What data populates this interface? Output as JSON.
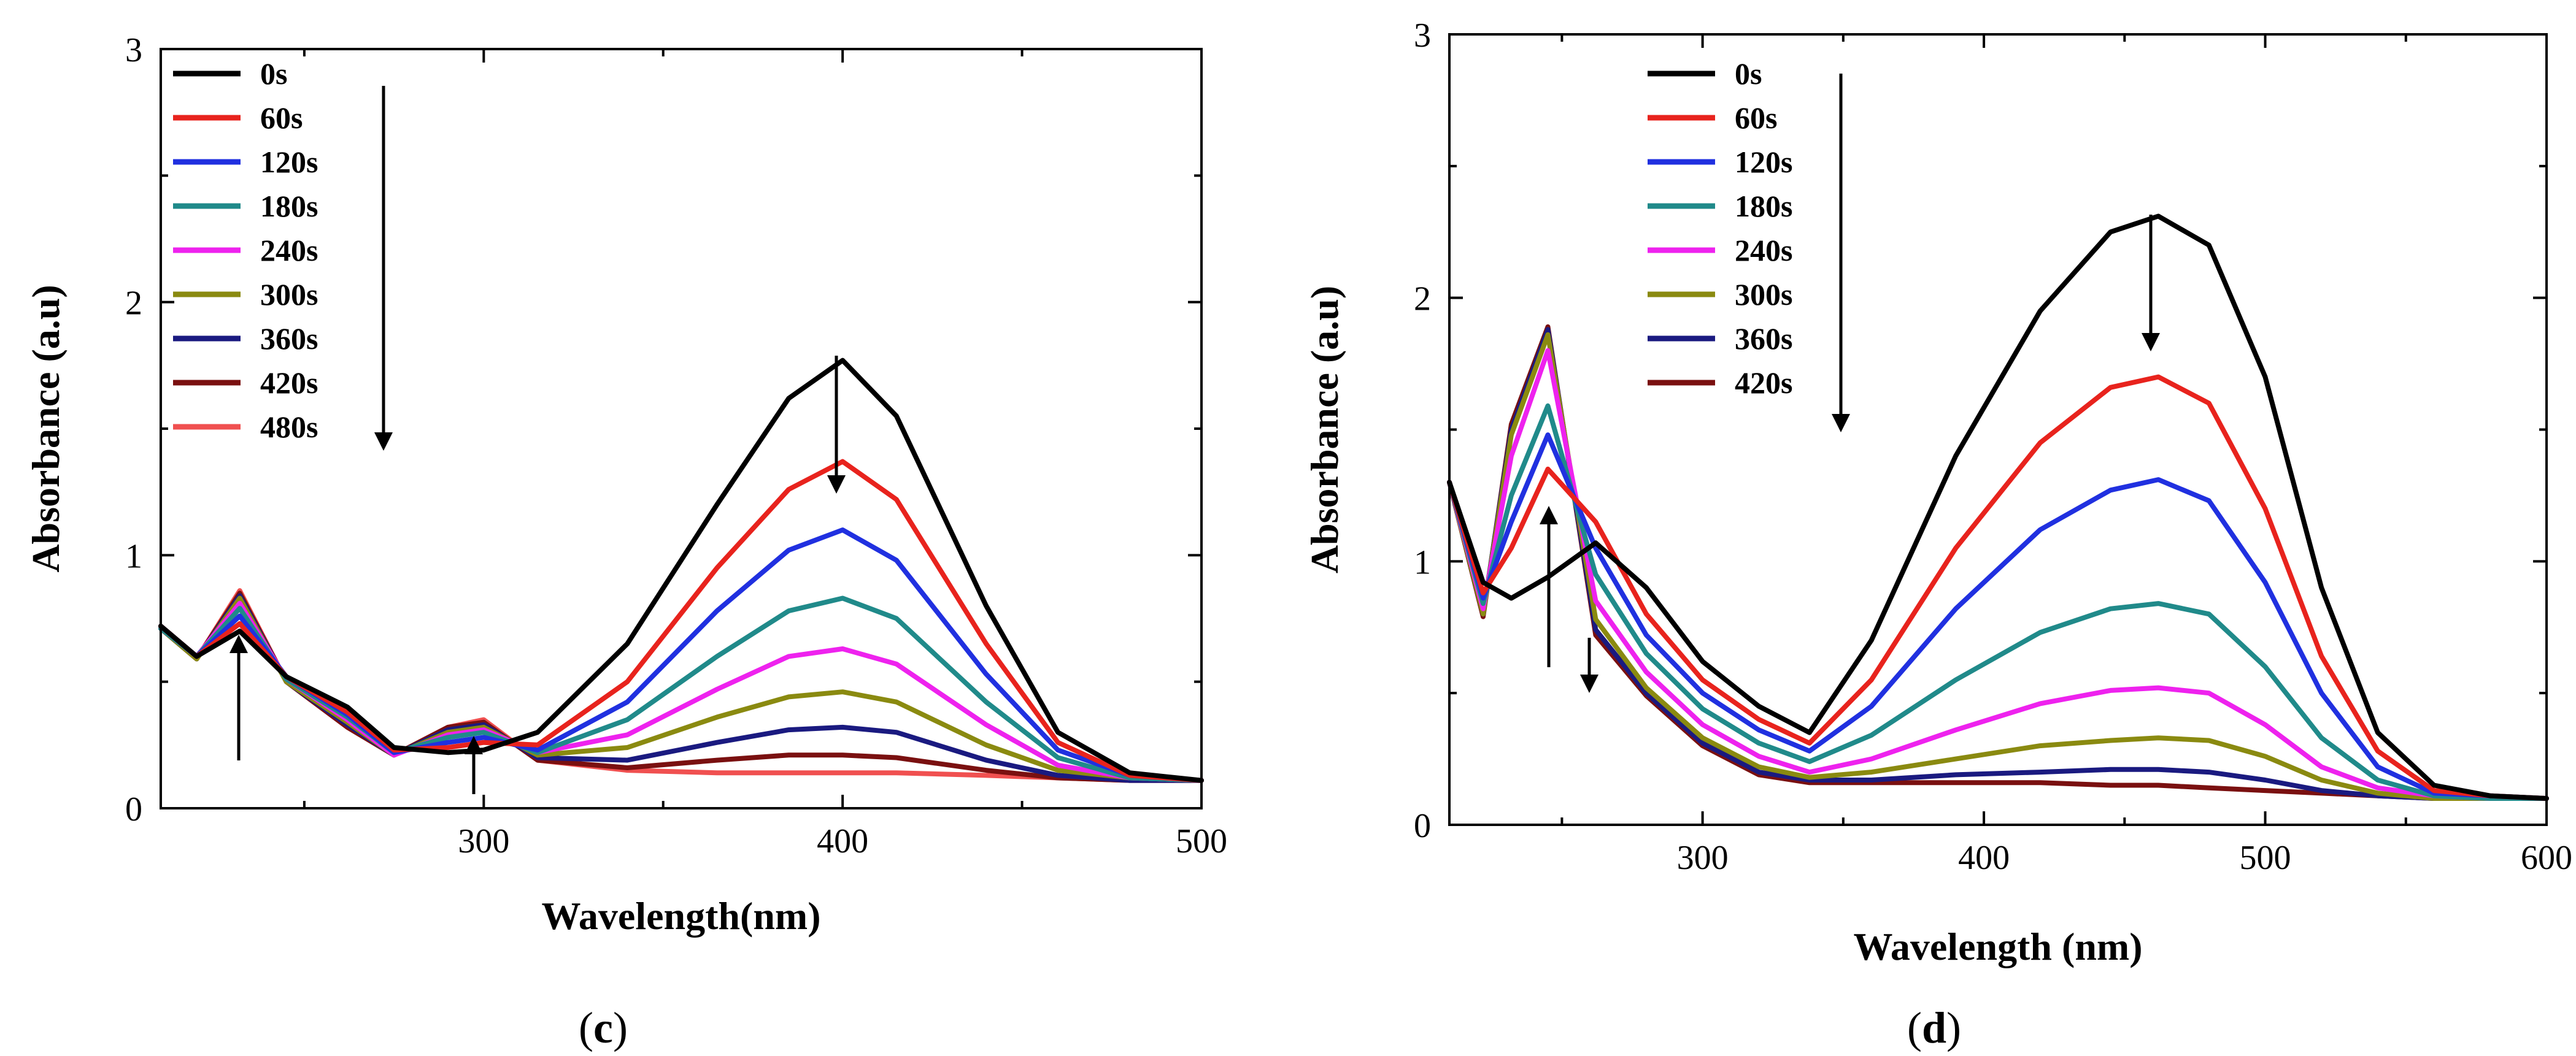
{
  "chart_data": [
    {
      "type": "line",
      "panel_label": "c",
      "xlabel": "Wavelength(nm)",
      "ylabel": "Absorbance (a.u)",
      "xlim": [
        210,
        500
      ],
      "ylim": [
        0,
        3
      ],
      "xticks": [
        300,
        400,
        500
      ],
      "yticks": [
        0,
        1,
        2,
        3
      ],
      "legend": "top-left",
      "grid": false,
      "series": [
        {
          "name": "0s",
          "color": "#000000",
          "x": [
            210,
            220,
            232,
            245,
            262,
            275,
            290,
            300,
            315,
            340,
            365,
            385,
            400,
            415,
            440,
            460,
            480,
            500
          ],
          "y": [
            0.72,
            0.6,
            0.7,
            0.52,
            0.4,
            0.24,
            0.22,
            0.23,
            0.3,
            0.65,
            1.2,
            1.62,
            1.77,
            1.55,
            0.8,
            0.3,
            0.14,
            0.11
          ]
        },
        {
          "name": "60s",
          "color": "#e8231d",
          "x": [
            210,
            220,
            232,
            245,
            262,
            275,
            290,
            300,
            315,
            340,
            365,
            385,
            400,
            415,
            440,
            460,
            480,
            500
          ],
          "y": [
            0.72,
            0.6,
            0.73,
            0.52,
            0.38,
            0.23,
            0.24,
            0.26,
            0.25,
            0.5,
            0.95,
            1.26,
            1.37,
            1.22,
            0.65,
            0.26,
            0.13,
            0.11
          ]
        },
        {
          "name": "120s",
          "color": "#2030e0",
          "x": [
            210,
            220,
            232,
            245,
            262,
            275,
            290,
            300,
            315,
            340,
            365,
            385,
            400,
            415,
            440,
            460,
            480,
            500
          ],
          "y": [
            0.72,
            0.6,
            0.76,
            0.52,
            0.37,
            0.22,
            0.26,
            0.28,
            0.23,
            0.42,
            0.78,
            1.02,
            1.1,
            0.98,
            0.53,
            0.23,
            0.13,
            0.11
          ]
        },
        {
          "name": "180s",
          "color": "#208a8a",
          "x": [
            210,
            220,
            232,
            245,
            262,
            275,
            290,
            300,
            315,
            340,
            365,
            385,
            400,
            415,
            440,
            460,
            480,
            500
          ],
          "y": [
            0.71,
            0.6,
            0.79,
            0.51,
            0.36,
            0.22,
            0.28,
            0.3,
            0.22,
            0.35,
            0.6,
            0.78,
            0.83,
            0.75,
            0.42,
            0.2,
            0.12,
            0.11
          ]
        },
        {
          "name": "240s",
          "color": "#ee22ee",
          "x": [
            210,
            220,
            232,
            245,
            262,
            275,
            290,
            300,
            315,
            340,
            365,
            385,
            400,
            415,
            440,
            460,
            480,
            500
          ],
          "y": [
            0.71,
            0.6,
            0.81,
            0.51,
            0.35,
            0.21,
            0.29,
            0.31,
            0.22,
            0.29,
            0.47,
            0.6,
            0.63,
            0.57,
            0.33,
            0.17,
            0.12,
            0.11
          ]
        },
        {
          "name": "300s",
          "color": "#8a8a10",
          "x": [
            210,
            220,
            232,
            245,
            262,
            275,
            290,
            300,
            315,
            340,
            365,
            385,
            400,
            415,
            440,
            460,
            480,
            500
          ],
          "y": [
            0.71,
            0.59,
            0.83,
            0.5,
            0.34,
            0.21,
            0.3,
            0.32,
            0.21,
            0.24,
            0.36,
            0.44,
            0.46,
            0.42,
            0.25,
            0.15,
            0.12,
            0.11
          ]
        },
        {
          "name": "360s",
          "color": "#1a1a80",
          "x": [
            210,
            220,
            232,
            245,
            262,
            275,
            290,
            300,
            315,
            340,
            365,
            385,
            400,
            415,
            440,
            460,
            480,
            500
          ],
          "y": [
            0.71,
            0.59,
            0.84,
            0.5,
            0.33,
            0.21,
            0.31,
            0.33,
            0.2,
            0.19,
            0.26,
            0.31,
            0.32,
            0.3,
            0.19,
            0.13,
            0.11,
            0.11
          ]
        },
        {
          "name": "420s",
          "color": "#7a1010",
          "x": [
            210,
            220,
            232,
            245,
            262,
            275,
            290,
            300,
            315,
            340,
            365,
            385,
            400,
            415,
            440,
            460,
            480,
            500
          ],
          "y": [
            0.71,
            0.59,
            0.85,
            0.5,
            0.32,
            0.21,
            0.32,
            0.34,
            0.19,
            0.16,
            0.19,
            0.21,
            0.21,
            0.2,
            0.15,
            0.12,
            0.11,
            0.11
          ]
        },
        {
          "name": "480s",
          "color": "#f05050",
          "x": [
            210,
            220,
            232,
            245,
            262,
            275,
            290,
            300,
            315,
            340,
            365,
            385,
            400,
            415,
            440,
            460,
            480,
            500
          ],
          "y": [
            0.71,
            0.59,
            0.86,
            0.5,
            0.32,
            0.21,
            0.32,
            0.35,
            0.19,
            0.15,
            0.14,
            0.14,
            0.14,
            0.14,
            0.13,
            0.12,
            0.11,
            0.11
          ]
        }
      ]
    },
    {
      "type": "line",
      "panel_label": "d",
      "xlabel": "Wavelength (nm)",
      "ylabel": "Absorbance (a.u)",
      "xlim": [
        210,
        600
      ],
      "ylim": [
        0,
        3
      ],
      "xticks": [
        300,
        400,
        500,
        600
      ],
      "yticks": [
        0,
        1,
        2,
        3
      ],
      "legend": "top-left",
      "grid": false,
      "series": [
        {
          "name": "0s",
          "color": "#000000",
          "x": [
            210,
            222,
            232,
            245,
            262,
            280,
            300,
            320,
            338,
            360,
            390,
            420,
            445,
            462,
            480,
            500,
            520,
            540,
            560,
            580,
            600
          ],
          "y": [
            1.3,
            0.92,
            0.86,
            0.94,
            1.07,
            0.9,
            0.62,
            0.45,
            0.35,
            0.7,
            1.4,
            1.95,
            2.25,
            2.31,
            2.2,
            1.7,
            0.9,
            0.35,
            0.15,
            0.11,
            0.1
          ]
        },
        {
          "name": "60s",
          "color": "#e8231d",
          "x": [
            210,
            222,
            232,
            245,
            262,
            280,
            300,
            320,
            338,
            360,
            390,
            420,
            445,
            462,
            480,
            500,
            520,
            540,
            560,
            580,
            600
          ],
          "y": [
            1.3,
            0.88,
            1.05,
            1.35,
            1.15,
            0.8,
            0.55,
            0.4,
            0.31,
            0.55,
            1.05,
            1.45,
            1.66,
            1.7,
            1.6,
            1.2,
            0.64,
            0.28,
            0.13,
            0.11,
            0.1
          ]
        },
        {
          "name": "120s",
          "color": "#2030e0",
          "x": [
            210,
            222,
            232,
            245,
            262,
            280,
            300,
            320,
            338,
            360,
            390,
            420,
            445,
            462,
            480,
            500,
            520,
            540,
            560,
            580,
            600
          ],
          "y": [
            1.3,
            0.86,
            1.15,
            1.48,
            1.05,
            0.72,
            0.5,
            0.36,
            0.28,
            0.45,
            0.82,
            1.12,
            1.27,
            1.31,
            1.23,
            0.92,
            0.5,
            0.22,
            0.12,
            0.11,
            0.1
          ]
        },
        {
          "name": "180s",
          "color": "#208a8a",
          "x": [
            210,
            222,
            232,
            245,
            262,
            280,
            300,
            320,
            338,
            360,
            390,
            420,
            445,
            462,
            480,
            500,
            520,
            540,
            560,
            580,
            600
          ],
          "y": [
            1.3,
            0.84,
            1.25,
            1.59,
            0.95,
            0.65,
            0.44,
            0.31,
            0.24,
            0.34,
            0.55,
            0.73,
            0.82,
            0.84,
            0.8,
            0.6,
            0.33,
            0.17,
            0.11,
            0.1,
            0.1
          ]
        },
        {
          "name": "240s",
          "color": "#ee22ee",
          "x": [
            210,
            222,
            232,
            245,
            262,
            280,
            300,
            320,
            338,
            360,
            390,
            420,
            445,
            462,
            480,
            500,
            520,
            540,
            560,
            580,
            600
          ],
          "y": [
            1.3,
            0.82,
            1.4,
            1.8,
            0.85,
            0.58,
            0.38,
            0.26,
            0.2,
            0.25,
            0.36,
            0.46,
            0.51,
            0.52,
            0.5,
            0.38,
            0.22,
            0.14,
            0.11,
            0.1,
            0.1
          ]
        },
        {
          "name": "300s",
          "color": "#8a8a10",
          "x": [
            210,
            222,
            232,
            245,
            262,
            280,
            300,
            320,
            338,
            360,
            390,
            420,
            445,
            462,
            480,
            500,
            520,
            540,
            560,
            580,
            600
          ],
          "y": [
            1.3,
            0.8,
            1.48,
            1.86,
            0.78,
            0.52,
            0.33,
            0.22,
            0.18,
            0.2,
            0.25,
            0.3,
            0.32,
            0.33,
            0.32,
            0.26,
            0.17,
            0.12,
            0.1,
            0.1,
            0.1
          ]
        },
        {
          "name": "360s",
          "color": "#1a1a80",
          "x": [
            210,
            222,
            232,
            245,
            262,
            280,
            300,
            320,
            338,
            360,
            390,
            420,
            445,
            462,
            480,
            500,
            520,
            540,
            560,
            580,
            600
          ],
          "y": [
            1.3,
            0.8,
            1.5,
            1.88,
            0.74,
            0.5,
            0.31,
            0.2,
            0.17,
            0.17,
            0.19,
            0.2,
            0.21,
            0.21,
            0.2,
            0.17,
            0.13,
            0.11,
            0.1,
            0.1,
            0.1
          ]
        },
        {
          "name": "420s",
          "color": "#7a1010",
          "x": [
            210,
            222,
            232,
            245,
            262,
            280,
            300,
            320,
            338,
            360,
            390,
            420,
            445,
            462,
            480,
            500,
            520,
            540,
            560,
            580,
            600
          ],
          "y": [
            1.3,
            0.79,
            1.52,
            1.89,
            0.72,
            0.49,
            0.3,
            0.19,
            0.16,
            0.16,
            0.16,
            0.16,
            0.15,
            0.15,
            0.14,
            0.13,
            0.12,
            0.11,
            0.1,
            0.1,
            0.1
          ]
        }
      ]
    }
  ]
}
